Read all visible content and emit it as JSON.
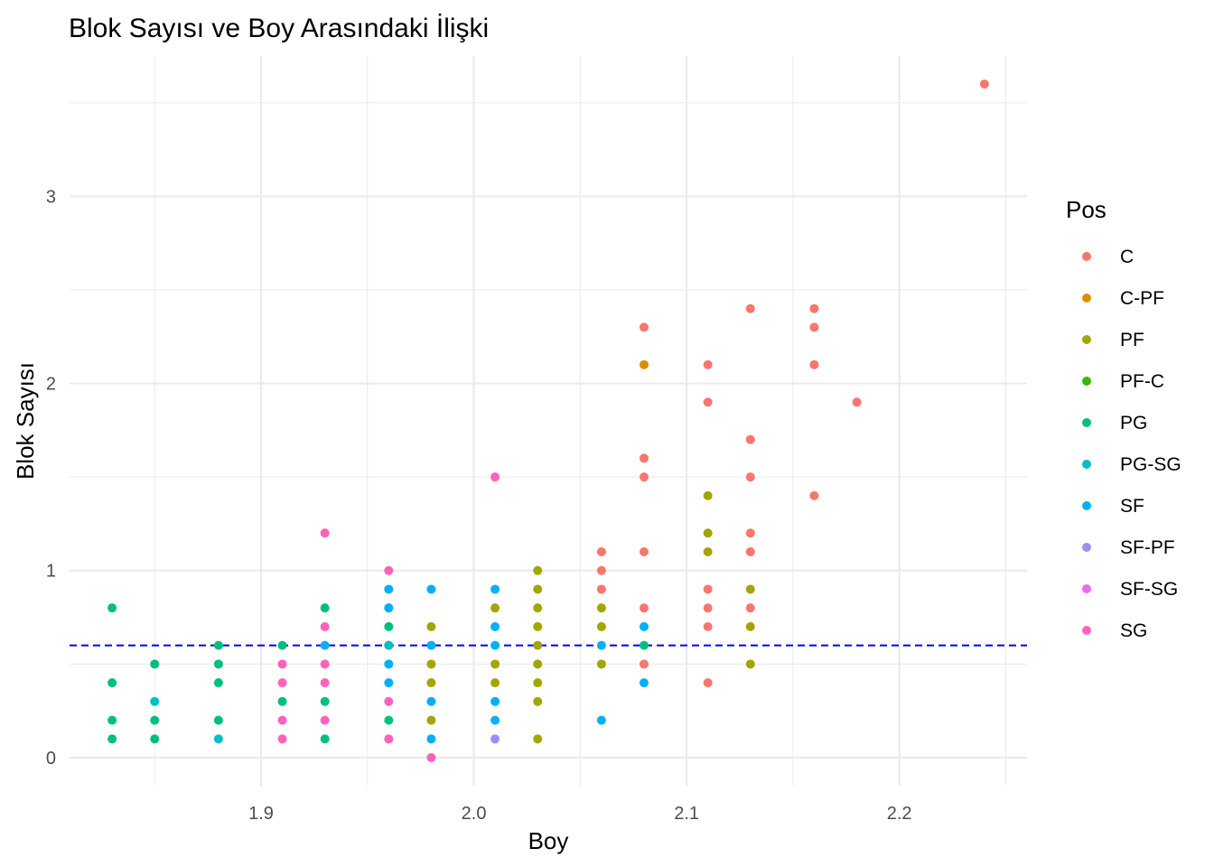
{
  "chart_data": {
    "type": "scatter",
    "title": "Blok Sayısı ve Boy Arasındaki İlişki",
    "xlabel": "Boy",
    "ylabel": "Blok Sayısı",
    "xlim": [
      1.81,
      2.26
    ],
    "ylim": [
      -0.15,
      3.75
    ],
    "x_ticks": [
      1.9,
      2.0,
      2.1,
      2.2
    ],
    "x_tick_labels": [
      "1.9",
      "2.0",
      "2.1",
      "2.2"
    ],
    "y_ticks": [
      0,
      1,
      2,
      3
    ],
    "y_tick_labels": [
      "0",
      "1",
      "2",
      "3"
    ],
    "grid": true,
    "reference_line": {
      "y": 0.6,
      "style": "dashed",
      "color": "#0000ff"
    },
    "legend": {
      "title": "Pos",
      "placement": "right",
      "entries": [
        {
          "name": "C",
          "color": "#F8766D"
        },
        {
          "name": "C-PF",
          "color": "#D89000"
        },
        {
          "name": "PF",
          "color": "#A3A500"
        },
        {
          "name": "PF-C",
          "color": "#39B600"
        },
        {
          "name": "PG",
          "color": "#00BF7D"
        },
        {
          "name": "PG-SG",
          "color": "#00BFC4"
        },
        {
          "name": "SF",
          "color": "#00B0F6"
        },
        {
          "name": "SF-PF",
          "color": "#9590FF"
        },
        {
          "name": "SF-SG",
          "color": "#E76BF3"
        },
        {
          "name": "SG",
          "color": "#FF62BC"
        }
      ]
    },
    "series": [
      {
        "name": "C",
        "color": "#F8766D",
        "points": [
          [
            2.24,
            3.6
          ],
          [
            2.08,
            2.3
          ],
          [
            2.08,
            1.6
          ],
          [
            2.08,
            1.5
          ],
          [
            2.08,
            1.1
          ],
          [
            2.08,
            0.8
          ],
          [
            2.08,
            0.5
          ],
          [
            2.06,
            1.1
          ],
          [
            2.06,
            1.0
          ],
          [
            2.06,
            0.9
          ],
          [
            2.11,
            2.1
          ],
          [
            2.11,
            1.9
          ],
          [
            2.11,
            0.9
          ],
          [
            2.11,
            0.8
          ],
          [
            2.11,
            0.7
          ],
          [
            2.11,
            0.4
          ],
          [
            2.13,
            2.4
          ],
          [
            2.13,
            1.7
          ],
          [
            2.13,
            1.5
          ],
          [
            2.13,
            1.2
          ],
          [
            2.13,
            1.1
          ],
          [
            2.13,
            0.8
          ],
          [
            2.16,
            2.4
          ],
          [
            2.16,
            2.3
          ],
          [
            2.16,
            2.1
          ],
          [
            2.16,
            1.4
          ],
          [
            2.18,
            1.9
          ]
        ]
      },
      {
        "name": "C-PF",
        "color": "#D89000",
        "points": [
          [
            2.08,
            2.1
          ]
        ]
      },
      {
        "name": "PF",
        "color": "#A3A500",
        "points": [
          [
            1.96,
            0.6
          ],
          [
            1.98,
            0.7
          ],
          [
            1.98,
            0.5
          ],
          [
            1.98,
            0.4
          ],
          [
            1.98,
            0.2
          ],
          [
            2.01,
            0.8
          ],
          [
            2.01,
            0.5
          ],
          [
            2.01,
            0.4
          ],
          [
            2.03,
            1.0
          ],
          [
            2.03,
            0.9
          ],
          [
            2.03,
            0.8
          ],
          [
            2.03,
            0.7
          ],
          [
            2.03,
            0.6
          ],
          [
            2.03,
            0.5
          ],
          [
            2.03,
            0.4
          ],
          [
            2.03,
            0.3
          ],
          [
            2.03,
            0.1
          ],
          [
            2.06,
            0.8
          ],
          [
            2.06,
            0.7
          ],
          [
            2.06,
            0.5
          ],
          [
            2.11,
            1.4
          ],
          [
            2.11,
            1.2
          ],
          [
            2.11,
            1.1
          ],
          [
            2.13,
            0.9
          ],
          [
            2.13,
            0.7
          ],
          [
            2.13,
            0.5
          ]
        ]
      },
      {
        "name": "PF-C",
        "color": "#39B600",
        "points": []
      },
      {
        "name": "PG",
        "color": "#00BF7D",
        "points": [
          [
            1.83,
            0.8
          ],
          [
            1.83,
            0.4
          ],
          [
            1.83,
            0.2
          ],
          [
            1.83,
            0.1
          ],
          [
            1.85,
            0.5
          ],
          [
            1.85,
            0.2
          ],
          [
            1.85,
            0.1
          ],
          [
            1.88,
            0.6
          ],
          [
            1.88,
            0.5
          ],
          [
            1.88,
            0.4
          ],
          [
            1.88,
            0.2
          ],
          [
            1.91,
            0.6
          ],
          [
            1.91,
            0.3
          ],
          [
            1.93,
            0.8
          ],
          [
            1.93,
            0.3
          ],
          [
            1.93,
            0.1
          ],
          [
            1.96,
            0.8
          ],
          [
            1.96,
            0.7
          ],
          [
            1.96,
            0.2
          ],
          [
            2.08,
            0.6
          ]
        ]
      },
      {
        "name": "PG-SG",
        "color": "#00BFC4",
        "points": [
          [
            1.85,
            0.3
          ],
          [
            1.88,
            0.1
          ],
          [
            1.96,
            0.6
          ]
        ]
      },
      {
        "name": "SF",
        "color": "#00B0F6",
        "points": [
          [
            1.93,
            0.6
          ],
          [
            1.96,
            0.9
          ],
          [
            1.96,
            0.8
          ],
          [
            1.96,
            0.5
          ],
          [
            1.96,
            0.4
          ],
          [
            1.98,
            0.9
          ],
          [
            1.98,
            0.6
          ],
          [
            1.98,
            0.3
          ],
          [
            1.98,
            0.1
          ],
          [
            2.01,
            0.9
          ],
          [
            2.01,
            0.7
          ],
          [
            2.01,
            0.6
          ],
          [
            2.01,
            0.3
          ],
          [
            2.01,
            0.2
          ],
          [
            2.06,
            0.6
          ],
          [
            2.06,
            0.2
          ],
          [
            2.08,
            0.7
          ],
          [
            2.08,
            0.4
          ]
        ]
      },
      {
        "name": "SF-PF",
        "color": "#9590FF",
        "points": [
          [
            2.01,
            0.1
          ]
        ]
      },
      {
        "name": "SF-SG",
        "color": "#E76BF3",
        "points": []
      },
      {
        "name": "SG",
        "color": "#FF62BC",
        "points": [
          [
            1.91,
            0.5
          ],
          [
            1.91,
            0.4
          ],
          [
            1.91,
            0.2
          ],
          [
            1.91,
            0.1
          ],
          [
            1.93,
            1.2
          ],
          [
            1.93,
            0.7
          ],
          [
            1.93,
            0.5
          ],
          [
            1.93,
            0.4
          ],
          [
            1.93,
            0.2
          ],
          [
            1.96,
            1.0
          ],
          [
            1.96,
            0.3
          ],
          [
            1.96,
            0.1
          ],
          [
            1.98,
            0.0
          ],
          [
            2.01,
            1.5
          ]
        ]
      }
    ]
  }
}
